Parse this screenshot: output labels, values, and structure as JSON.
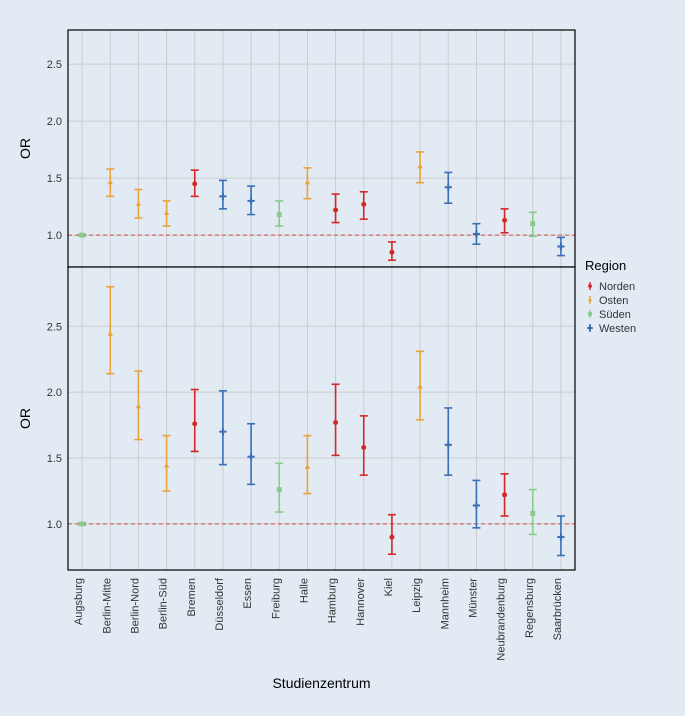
{
  "chart": {
    "type": "pointrange-facet",
    "background_color": "#e2ebf3",
    "panel_fill": "#e2ebf3",
    "grid_color": "#cccccc",
    "panel_border_color": "#000000",
    "refline_color": "#d44b4b",
    "refline_dash": "4,3",
    "xlabel": "Studienzentrum",
    "ylabel": "OR",
    "label_fontsize": 14,
    "tick_fontsize": 11,
    "yticks": [
      1.0,
      1.5,
      2.0,
      2.5
    ],
    "ylim_top": [
      0.72,
      2.8
    ],
    "ylim_bottom": [
      0.65,
      2.95
    ],
    "categories": [
      "Augsburg",
      "Berlin-Mitte",
      "Berlin-Nord",
      "Berlin-Süd",
      "Bremen",
      "Düsseldorf",
      "Essen",
      "Freiburg",
      "Halle",
      "Hamburg",
      "Hannover",
      "Kiel",
      "Leipzig",
      "Mannheim",
      "Münster",
      "Neubrandenburg",
      "Regensburg",
      "Saarbrücken"
    ],
    "regions": {
      "Augsburg": "Süden",
      "Berlin-Mitte": "Osten",
      "Berlin-Nord": "Osten",
      "Berlin-Süd": "Osten",
      "Bremen": "Norden",
      "Düsseldorf": "Westen",
      "Essen": "Westen",
      "Freiburg": "Süden",
      "Halle": "Osten",
      "Hamburg": "Norden",
      "Hannover": "Norden",
      "Kiel": "Norden",
      "Leipzig": "Osten",
      "Mannheim": "Westen",
      "Münster": "Westen",
      "Neubrandenburg": "Norden",
      "Regensburg": "Süden",
      "Saarbrücken": "Westen"
    },
    "region_colors": {
      "Norden": "#d62728",
      "Osten": "#e8a33d",
      "Süden": "#8cc98c",
      "Westen": "#3a6fb7"
    },
    "region_shapes": {
      "Norden": "circle",
      "Osten": "triangle",
      "Süden": "square",
      "Westen": "plus"
    },
    "legend_title": "Region",
    "legend_order": [
      "Norden",
      "Osten",
      "Süden",
      "Westen"
    ],
    "panels": [
      {
        "refline": 1.0,
        "points": {
          "Augsburg": {
            "or": 1.0,
            "lo": 0.99,
            "hi": 1.01
          },
          "Berlin-Mitte": {
            "or": 1.46,
            "lo": 1.34,
            "hi": 1.58
          },
          "Berlin-Nord": {
            "or": 1.27,
            "lo": 1.15,
            "hi": 1.4
          },
          "Berlin-Süd": {
            "or": 1.19,
            "lo": 1.08,
            "hi": 1.3
          },
          "Bremen": {
            "or": 1.45,
            "lo": 1.34,
            "hi": 1.57
          },
          "Düsseldorf": {
            "or": 1.34,
            "lo": 1.23,
            "hi": 1.48
          },
          "Essen": {
            "or": 1.3,
            "lo": 1.18,
            "hi": 1.43
          },
          "Freiburg": {
            "or": 1.18,
            "lo": 1.08,
            "hi": 1.3
          },
          "Halle": {
            "or": 1.46,
            "lo": 1.32,
            "hi": 1.59
          },
          "Hamburg": {
            "or": 1.22,
            "lo": 1.11,
            "hi": 1.36
          },
          "Hannover": {
            "or": 1.27,
            "lo": 1.14,
            "hi": 1.38
          },
          "Kiel": {
            "or": 0.85,
            "lo": 0.78,
            "hi": 0.94
          },
          "Leipzig": {
            "or": 1.6,
            "lo": 1.46,
            "hi": 1.73
          },
          "Mannheim": {
            "or": 1.42,
            "lo": 1.28,
            "hi": 1.55
          },
          "Münster": {
            "or": 1.01,
            "lo": 0.92,
            "hi": 1.1
          },
          "Neubrandenburg": {
            "or": 1.13,
            "lo": 1.02,
            "hi": 1.23
          },
          "Regensburg": {
            "or": 1.1,
            "lo": 0.99,
            "hi": 1.2
          },
          "Saarbrücken": {
            "or": 0.9,
            "lo": 0.82,
            "hi": 0.98
          }
        }
      },
      {
        "refline": 1.0,
        "points": {
          "Augsburg": {
            "or": 1.0,
            "lo": 0.99,
            "hi": 1.01
          },
          "Berlin-Mitte": {
            "or": 2.44,
            "lo": 2.14,
            "hi": 2.8
          },
          "Berlin-Nord": {
            "or": 1.89,
            "lo": 1.64,
            "hi": 2.16
          },
          "Berlin-Süd": {
            "or": 1.44,
            "lo": 1.25,
            "hi": 1.67
          },
          "Bremen": {
            "or": 1.76,
            "lo": 1.55,
            "hi": 2.02
          },
          "Düsseldorf": {
            "or": 1.7,
            "lo": 1.45,
            "hi": 2.01
          },
          "Essen": {
            "or": 1.51,
            "lo": 1.3,
            "hi": 1.76
          },
          "Freiburg": {
            "or": 1.26,
            "lo": 1.09,
            "hi": 1.46
          },
          "Halle": {
            "or": 1.43,
            "lo": 1.23,
            "hi": 1.67
          },
          "Hamburg": {
            "or": 1.77,
            "lo": 1.52,
            "hi": 2.06
          },
          "Hannover": {
            "or": 1.58,
            "lo": 1.37,
            "hi": 1.82
          },
          "Kiel": {
            "or": 0.9,
            "lo": 0.77,
            "hi": 1.07
          },
          "Leipzig": {
            "or": 2.04,
            "lo": 1.79,
            "hi": 2.31
          },
          "Mannheim": {
            "or": 1.6,
            "lo": 1.37,
            "hi": 1.88
          },
          "Münster": {
            "or": 1.14,
            "lo": 0.97,
            "hi": 1.33
          },
          "Neubrandenburg": {
            "or": 1.22,
            "lo": 1.06,
            "hi": 1.38
          },
          "Regensburg": {
            "or": 1.08,
            "lo": 0.92,
            "hi": 1.26
          },
          "Saarbrücken": {
            "or": 0.9,
            "lo": 0.76,
            "hi": 1.06
          }
        }
      }
    ]
  }
}
